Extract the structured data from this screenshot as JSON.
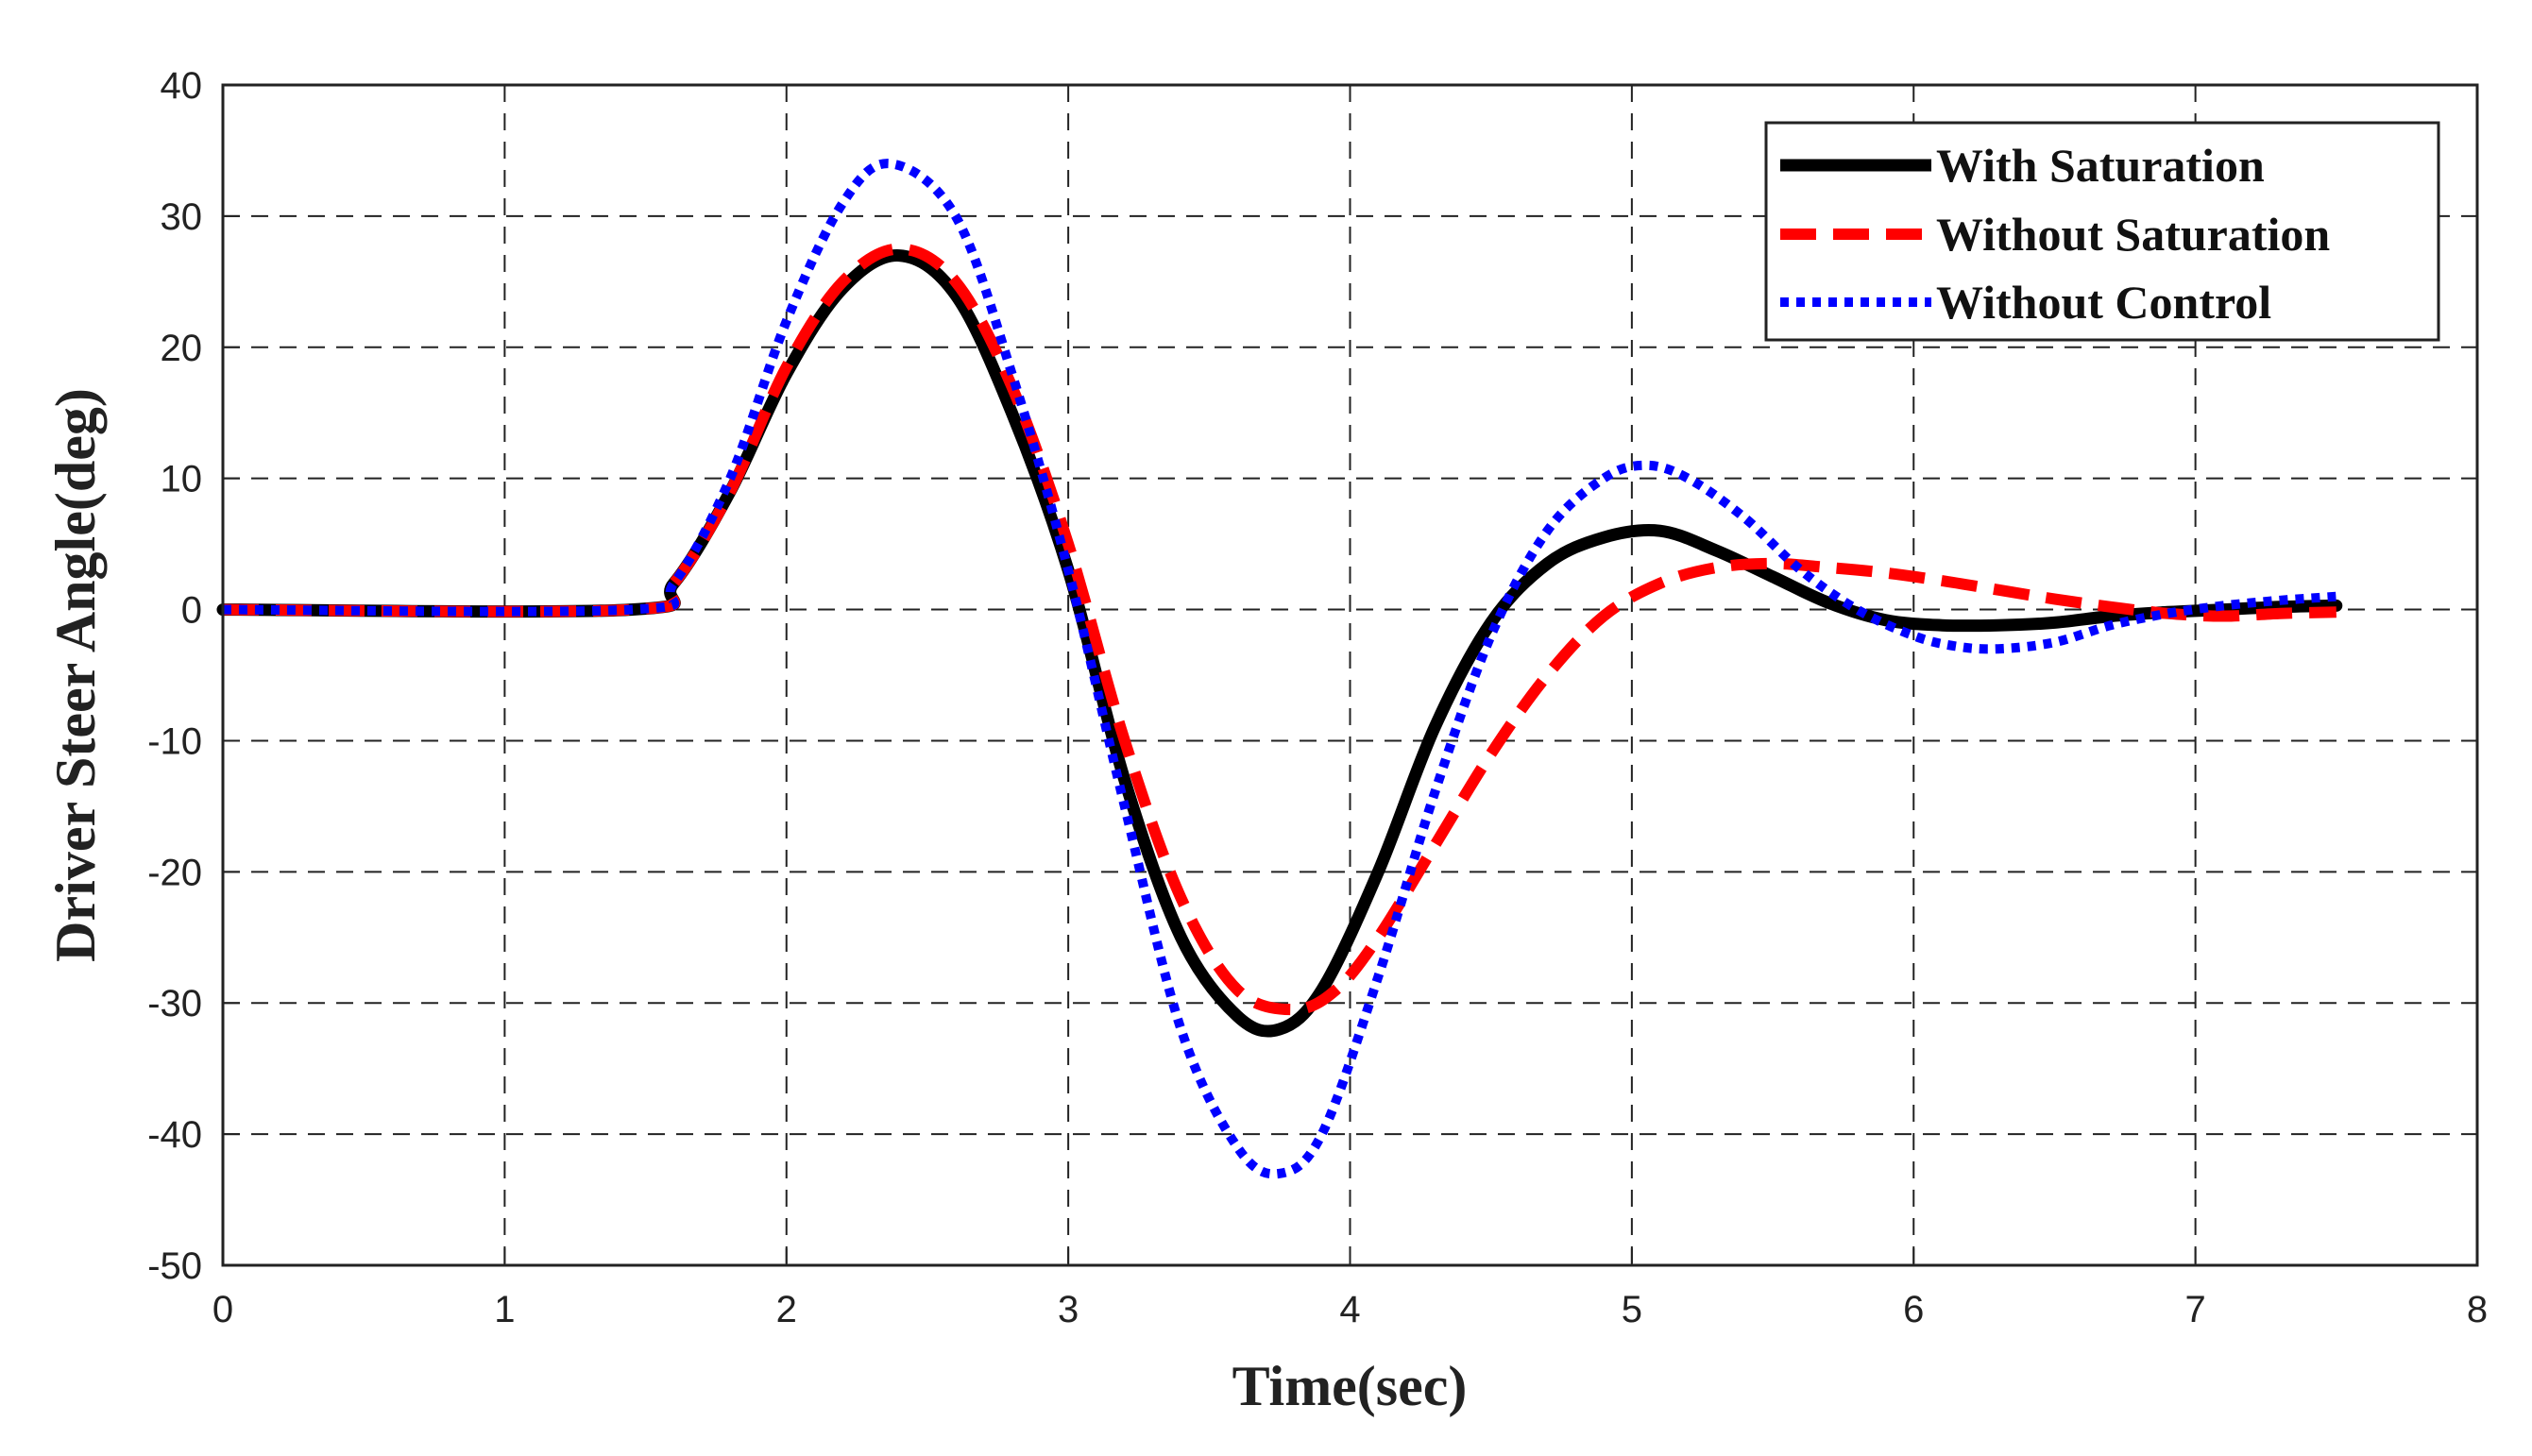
{
  "chart_data": {
    "type": "line",
    "title": "",
    "xlabel": "Time(sec)",
    "ylabel": "Driver Steer Angle(deg)",
    "xlim": [
      0,
      8
    ],
    "ylim": [
      -50,
      40
    ],
    "xticks": [
      0,
      1,
      2,
      3,
      4,
      5,
      6,
      7,
      8
    ],
    "yticks": [
      -50,
      -40,
      -30,
      -20,
      -10,
      0,
      10,
      20,
      30,
      40
    ],
    "grid": true,
    "legend_position": "top-right",
    "series": [
      {
        "name": "With Saturation",
        "color": "#000000",
        "style": "solid",
        "x": [
          0,
          1.45,
          1.6,
          1.8,
          2.0,
          2.2,
          2.4,
          2.6,
          2.8,
          3.0,
          3.2,
          3.4,
          3.6,
          3.75,
          3.9,
          4.1,
          4.3,
          4.5,
          4.7,
          4.9,
          5.1,
          5.3,
          5.5,
          5.7,
          5.9,
          6.1,
          6.3,
          6.5,
          6.7,
          6.9,
          7.1,
          7.3,
          7.5
        ],
        "y": [
          0,
          0,
          2,
          9,
          18,
          24.5,
          27,
          24,
          15,
          3,
          -13,
          -25,
          -31,
          -32,
          -29,
          -20,
          -9,
          -1,
          3.5,
          5.5,
          6,
          4.5,
          2.5,
          0.5,
          -0.8,
          -1.2,
          -1.2,
          -1,
          -0.5,
          -0.2,
          0,
          0.2,
          0.3
        ]
      },
      {
        "name": "Without Saturation",
        "color": "#ff0000",
        "style": "dashed",
        "x": [
          0,
          1.45,
          1.6,
          1.8,
          2.0,
          2.2,
          2.4,
          2.6,
          2.8,
          3.0,
          3.2,
          3.4,
          3.6,
          3.8,
          3.95,
          4.1,
          4.3,
          4.5,
          4.7,
          4.9,
          5.1,
          5.3,
          5.5,
          5.7,
          5.9,
          6.1,
          6.3,
          6.5,
          6.7,
          6.9,
          7.1,
          7.3,
          7.5
        ],
        "y": [
          0,
          0,
          2,
          9,
          18.5,
          25,
          27.5,
          25,
          17,
          5,
          -10,
          -22,
          -29,
          -30.5,
          -29,
          -25,
          -18,
          -11,
          -5,
          -0.5,
          2,
          3.2,
          3.5,
          3.2,
          2.8,
          2.2,
          1.5,
          0.8,
          0.2,
          -0.3,
          -0.5,
          -0.3,
          -0.2
        ]
      },
      {
        "name": "Without Control",
        "color": "#0000ff",
        "style": "dotted",
        "x": [
          0,
          1.45,
          1.6,
          1.8,
          2.0,
          2.2,
          2.37,
          2.6,
          2.8,
          3.0,
          3.2,
          3.4,
          3.6,
          3.75,
          3.9,
          4.1,
          4.3,
          4.5,
          4.7,
          4.9,
          5.05,
          5.2,
          5.4,
          5.6,
          5.8,
          6.0,
          6.15,
          6.3,
          6.5,
          6.7,
          6.9,
          7.1,
          7.3,
          7.5
        ],
        "y": [
          0,
          0,
          2,
          10,
          22,
          31,
          34,
          30,
          18,
          3,
          -15,
          -32,
          -41,
          -43,
          -40,
          -28,
          -14,
          -2,
          6,
          10,
          11,
          10,
          7,
          3,
          0,
          -2,
          -2.8,
          -3,
          -2.5,
          -1.2,
          -0.3,
          0.3,
          0.7,
          1
        ]
      }
    ]
  }
}
